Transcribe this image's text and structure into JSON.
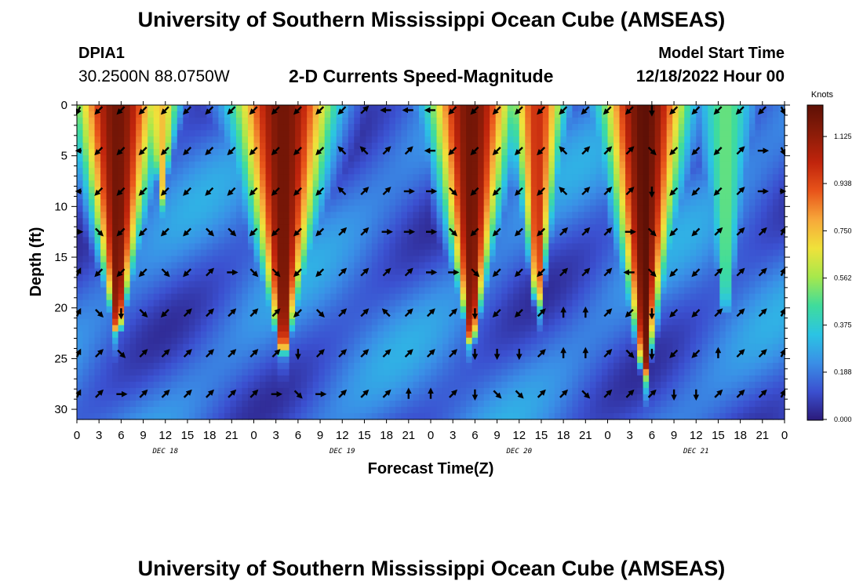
{
  "header": {
    "title_top": "University of Southern Mississippi Ocean Cube (AMSEAS)",
    "title_bottom": "University of Southern Mississippi Ocean Cube (AMSEAS)",
    "station_id": "DPIA1",
    "coordinates": "30.2500N  88.0750W",
    "subtitle": "2-D Currents Speed-Magnitude",
    "model_start_label": "Model Start Time",
    "model_start_value": "12/18/2022 Hour 00"
  },
  "chart_data": {
    "type": "heatmap",
    "title": "2-D Currents Speed-Magnitude",
    "xlabel": "Forecast Time(Z)",
    "ylabel": "Depth (ft)",
    "x_tick_labels": [
      "0",
      "3",
      "6",
      "9",
      "12",
      "15",
      "18",
      "21",
      "0",
      "3",
      "6",
      "9",
      "12",
      "15",
      "18",
      "21",
      "0",
      "3",
      "6",
      "9",
      "12",
      "15",
      "18",
      "21",
      "0",
      "3",
      "6",
      "9",
      "12",
      "15",
      "18",
      "21",
      "0"
    ],
    "x_range_hours": [
      0,
      96
    ],
    "day_labels": [
      {
        "label": "DEC 18",
        "hour": 12
      },
      {
        "label": "DEC 19",
        "hour": 36
      },
      {
        "label": "DEC 20",
        "hour": 60
      },
      {
        "label": "DEC 21",
        "hour": 84
      }
    ],
    "y_ticks": [
      0,
      5,
      10,
      15,
      20,
      25,
      30
    ],
    "y_range_ft": [
      0,
      31
    ],
    "colorbar": {
      "label": "Knots",
      "range": [
        0,
        1.25
      ],
      "ticks": [
        "0.000",
        "0.188",
        "0.375",
        "0.562",
        "0.750",
        "0.938",
        "1.125"
      ],
      "colors": [
        "#2b1a7a",
        "#3b50d0",
        "#3a8fe6",
        "#2bc4e4",
        "#3fdc9c",
        "#a6e84c",
        "#f0e23a",
        "#f7a83a",
        "#e8541a",
        "#c0240c",
        "#8b1c08",
        "#5e1006"
      ]
    },
    "strong_current_plumes": [
      {
        "name": "plume-dec18-early",
        "center_hour": 5.5,
        "half_width_hour": 5.5,
        "max_depth_ft": 22,
        "peak_knots": 1.2
      },
      {
        "name": "plume-dec18-mid",
        "center_hour": 11.5,
        "half_width_hour": 2.5,
        "max_depth_ft": 9,
        "peak_knots": 0.75
      },
      {
        "name": "plume-dec19-early",
        "center_hour": 28,
        "half_width_hour": 6.5,
        "max_depth_ft": 24,
        "peak_knots": 1.2
      },
      {
        "name": "plume-dec20-early",
        "center_hour": 53.5,
        "half_width_hour": 5.5,
        "max_depth_ft": 23,
        "peak_knots": 1.2
      },
      {
        "name": "plume-dec20-late",
        "center_hour": 62.5,
        "half_width_hour": 3.5,
        "max_depth_ft": 20,
        "peak_knots": 1.0
      },
      {
        "name": "plume-dec21-early",
        "center_hour": 77,
        "half_width_hour": 5.5,
        "max_depth_ft": 26,
        "peak_knots": 1.25
      },
      {
        "name": "plume-dec21-late",
        "center_hour": 88,
        "half_width_hour": 4,
        "max_depth_ft": 21,
        "peak_knots": 0.5
      }
    ],
    "arrow_times_hours": [
      0,
      3,
      6,
      9,
      12,
      15,
      18,
      21,
      24,
      27,
      30,
      33,
      36,
      39,
      42,
      45,
      48,
      51,
      54,
      57,
      60,
      63,
      66,
      69,
      72,
      75,
      78,
      81,
      84,
      87,
      90,
      93,
      96
    ],
    "arrow_depths_ft": [
      0.5,
      4.5,
      8.5,
      12.5,
      16.5,
      20.5,
      24.5,
      28.5
    ],
    "arrow_directions_deg": [
      [
        225,
        225,
        225,
        225,
        225,
        225,
        225,
        225,
        225,
        225,
        225,
        225,
        225,
        45,
        270,
        270,
        270,
        225,
        225,
        225,
        225,
        225,
        225,
        225,
        225,
        225,
        180,
        225,
        225,
        225,
        225,
        225,
        135
      ],
      [
        270,
        225,
        225,
        225,
        225,
        225,
        225,
        225,
        225,
        225,
        225,
        225,
        315,
        315,
        45,
        45,
        270,
        225,
        225,
        225,
        225,
        225,
        315,
        45,
        45,
        45,
        135,
        225,
        225,
        225,
        45,
        90,
        135
      ],
      [
        270,
        225,
        225,
        225,
        225,
        225,
        225,
        225,
        225,
        225,
        225,
        225,
        315,
        45,
        45,
        90,
        90,
        135,
        225,
        225,
        225,
        225,
        315,
        45,
        45,
        45,
        180,
        225,
        225,
        225,
        45,
        90,
        90
      ],
      [
        90,
        135,
        225,
        225,
        225,
        225,
        135,
        135,
        225,
        225,
        225,
        225,
        45,
        45,
        90,
        90,
        90,
        135,
        225,
        225,
        225,
        225,
        45,
        45,
        45,
        90,
        135,
        225,
        225,
        45,
        45,
        45,
        45
      ],
      [
        45,
        225,
        225,
        225,
        135,
        225,
        45,
        90,
        135,
        135,
        225,
        225,
        45,
        45,
        45,
        45,
        90,
        90,
        135,
        225,
        225,
        225,
        45,
        45,
        45,
        270,
        135,
        225,
        225,
        45,
        45,
        45,
        45
      ],
      [
        45,
        135,
        180,
        135,
        225,
        45,
        45,
        45,
        45,
        45,
        225,
        135,
        45,
        45,
        315,
        45,
        45,
        45,
        180,
        225,
        225,
        45,
        0,
        0,
        45,
        225,
        180,
        225,
        225,
        45,
        45,
        45,
        45
      ],
      [
        45,
        45,
        135,
        45,
        45,
        45,
        45,
        45,
        45,
        45,
        180,
        45,
        45,
        45,
        45,
        45,
        45,
        45,
        180,
        180,
        180,
        45,
        0,
        0,
        45,
        135,
        180,
        225,
        225,
        0,
        45,
        45,
        45
      ],
      [
        45,
        45,
        90,
        45,
        45,
        45,
        45,
        45,
        45,
        90,
        135,
        90,
        45,
        45,
        45,
        0,
        0,
        45,
        180,
        135,
        135,
        45,
        45,
        135,
        45,
        45,
        45,
        180,
        180,
        45,
        45,
        45,
        45
      ]
    ]
  }
}
